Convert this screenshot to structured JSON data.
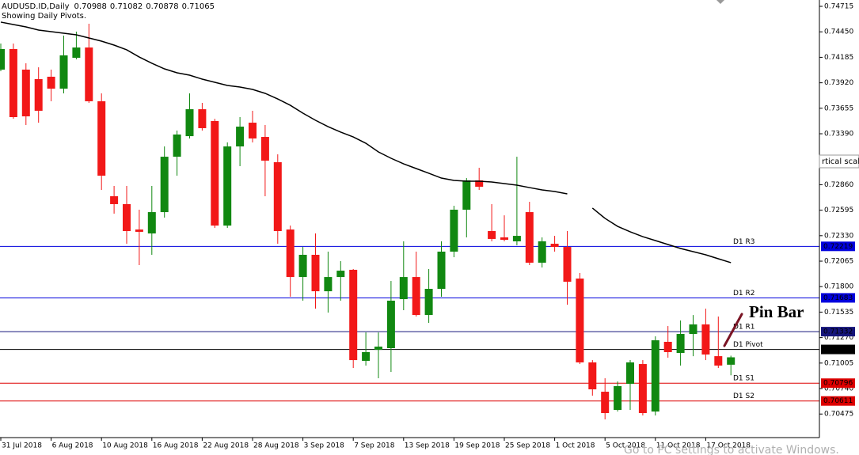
{
  "chart_data": {
    "type": "candlestick",
    "symbol": "AUDUSD.ID,Daily",
    "subtitle": "Showing Daily Pivots.",
    "categories": [
      "31 Jul 2018",
      null,
      null,
      null,
      "6 Aug 2018",
      null,
      null,
      null,
      "10 Aug 2018",
      null,
      null,
      null,
      "16 Aug 2018",
      null,
      null,
      null,
      "22 Aug 2018",
      null,
      null,
      null,
      "28 Aug 2018",
      null,
      null,
      null,
      "3 Sep 2018",
      null,
      null,
      null,
      "7 Sep 2018",
      null,
      null,
      null,
      "13 Sep 2018",
      null,
      null,
      null,
      "19 Sep 2018",
      null,
      null,
      null,
      "25 Sep 2018",
      null,
      null,
      null,
      "1 Oct 2018",
      null,
      null,
      null,
      "5 Oct 2018",
      null,
      null,
      null,
      "11 Oct 2018",
      null,
      null,
      null,
      "17 Oct 2018",
      null,
      null
    ],
    "open": [
      0.74057,
      0.74271,
      0.74057,
      0.73958,
      0.73983,
      0.73859,
      0.7418,
      0.74287,
      0.73728,
      0.7274,
      0.72658,
      0.72394,
      0.72353,
      0.72575,
      0.73151,
      0.73365,
      0.73645,
      0.73522,
      0.72435,
      0.73258,
      0.73505,
      0.73357,
      0.73094,
      0.72394,
      0.719,
      0.72131,
      0.71752,
      0.719,
      0.71975,
      0.71028,
      0.71143,
      0.7116,
      0.7167,
      0.719,
      0.71505,
      0.71777,
      0.72164,
      0.726,
      0.72905,
      0.72378,
      0.72312,
      0.72271,
      0.72575,
      0.72049,
      0.72246,
      0.72213,
      0.71884,
      0.71012,
      0.70707,
      0.70518,
      0.70789,
      0.70995,
      0.70501,
      0.71226,
      0.7111,
      0.71308,
      0.71407,
      0.71077,
      0.70988
    ],
    "high": [
      0.74328,
      0.74328,
      0.74123,
      0.74081,
      0.74057,
      0.74411,
      0.74452,
      0.74534,
      0.7381,
      0.72847,
      0.72847,
      0.726,
      0.72847,
      0.73258,
      0.73423,
      0.7381,
      0.73711,
      0.73546,
      0.733,
      0.73563,
      0.73629,
      0.73481,
      0.73176,
      0.72435,
      0.72213,
      0.72353,
      0.72164,
      0.72065,
      0.71983,
      0.71324,
      0.71324,
      0.71859,
      0.72271,
      0.72164,
      0.71983,
      0.72271,
      0.72641,
      0.72929,
      0.73036,
      0.72658,
      0.72542,
      0.73151,
      0.72682,
      0.72312,
      0.72328,
      0.72378,
      0.71942,
      0.71036,
      0.70847,
      0.70814,
      0.71036,
      0.71036,
      0.71283,
      0.7139,
      0.71448,
      0.71505,
      0.71571,
      0.71489,
      0.71082
    ],
    "low": [
      0.7404,
      0.73546,
      0.73481,
      0.73505,
      0.73728,
      0.7381,
      0.74164,
      0.73711,
      0.72806,
      0.72559,
      0.72246,
      0.72024,
      0.72131,
      0.72518,
      0.72954,
      0.73341,
      0.73423,
      0.72411,
      0.72411,
      0.73053,
      0.733,
      0.7274,
      0.72246,
      0.71695,
      0.71654,
      0.71571,
      0.7153,
      0.71654,
      0.70954,
      0.70979,
      0.70847,
      0.70913,
      0.71555,
      0.71489,
      0.71423,
      0.71695,
      0.72106,
      0.72312,
      0.72806,
      0.72271,
      0.72271,
      0.7223,
      0.72024,
      0.71999,
      0.72164,
      0.71612,
      0.70995,
      0.70666,
      0.70419,
      0.70501,
      0.70518,
      0.7046,
      0.7046,
      0.71061,
      0.70979,
      0.71077,
      0.71036,
      0.70954,
      0.70878
    ],
    "close": [
      0.74271,
      0.73563,
      0.73571,
      0.73629,
      0.73859,
      0.74205,
      0.74287,
      0.73728,
      0.72954,
      0.72658,
      0.72378,
      0.7237,
      0.72575,
      0.73151,
      0.73382,
      0.73645,
      0.73448,
      0.72435,
      0.73258,
      0.73464,
      0.73341,
      0.7311,
      0.72378,
      0.719,
      0.72131,
      0.71752,
      0.719,
      0.71966,
      0.71036,
      0.71119,
      0.71176,
      0.71654,
      0.719,
      0.71505,
      0.71777,
      0.72164,
      0.726,
      0.72905,
      0.72839,
      0.72296,
      0.72287,
      0.72328,
      0.72049,
      0.72271,
      0.72213,
      0.71851,
      0.71012,
      0.70732,
      0.70485,
      0.70765,
      0.71012,
      0.70485,
      0.71242,
      0.71119,
      0.71308,
      0.71407,
      0.71094,
      0.70979,
      0.71065
    ],
    "up_color": "#118811",
    "down_color": "#f21818",
    "ma": {
      "color": "#000000",
      "values": [
        0.74551,
        0.74526,
        0.74501,
        0.74468,
        0.74452,
        0.74435,
        0.74419,
        0.74386,
        0.74353,
        0.74312,
        0.74263,
        0.74188,
        0.74123,
        0.74065,
        0.74024,
        0.73999,
        0.73958,
        0.73925,
        0.73892,
        0.73876,
        0.73851,
        0.7381,
        0.73752,
        0.73686,
        0.73604,
        0.7353,
        0.73464,
        0.73407,
        0.73357,
        0.73291,
        0.73201,
        0.73135,
        0.73077,
        0.73028,
        0.72979,
        0.72929,
        0.72905,
        0.72896,
        0.72896,
        0.72888,
        0.72872,
        0.72855,
        0.7283,
        0.72806,
        0.72789,
        0.72765,
        null,
        0.72617,
        0.7251,
        0.72427,
        0.7237,
        0.7232,
        0.72279,
        0.72238,
        0.72197,
        0.72164,
        0.72131,
        0.7209,
        0.72049
      ]
    },
    "pivots": [
      {
        "name": "D1 R3",
        "value": 0.72219,
        "color": "#0000dd"
      },
      {
        "name": "D1 R2",
        "value": 0.71683,
        "color": "#0000dd"
      },
      {
        "name": "D1 R1",
        "value": 0.71332,
        "color": "#14147a"
      },
      {
        "name": "D1 Pivot",
        "value": 0.71147,
        "color": "#000000"
      },
      {
        "name": "D1 S1",
        "value": 0.70796,
        "color": "#dd0000"
      },
      {
        "name": "D1 S2",
        "value": 0.70611,
        "color": "#dd0000"
      }
    ],
    "ylim": [
      0.7023,
      0.74781
    ],
    "yticks": [
      0.74715,
      {
        "value": 0.7445,
        "label": "0.74450"
      },
      0.74185,
      {
        "value": 0.7392,
        "label": "0.73920"
      },
      0.73655,
      {
        "value": 0.7339,
        "label": "0.73390"
      },
      {
        "value": 0.7286,
        "label": "0.72860"
      },
      0.72595,
      {
        "value": 0.7233,
        "label": "0.72330"
      },
      0.72065,
      {
        "value": 0.718,
        "label": "0.71800"
      },
      0.71535,
      {
        "value": 0.7127,
        "label": "0.71270"
      },
      0.71005,
      {
        "value": 0.7074,
        "label": "0.70740"
      },
      0.70475
    ],
    "annotation": {
      "text": "Pin Bar",
      "color": "#7a1424"
    },
    "tooltip": "rtical scal",
    "watermark": "Go to PC settings to activate Windows."
  }
}
